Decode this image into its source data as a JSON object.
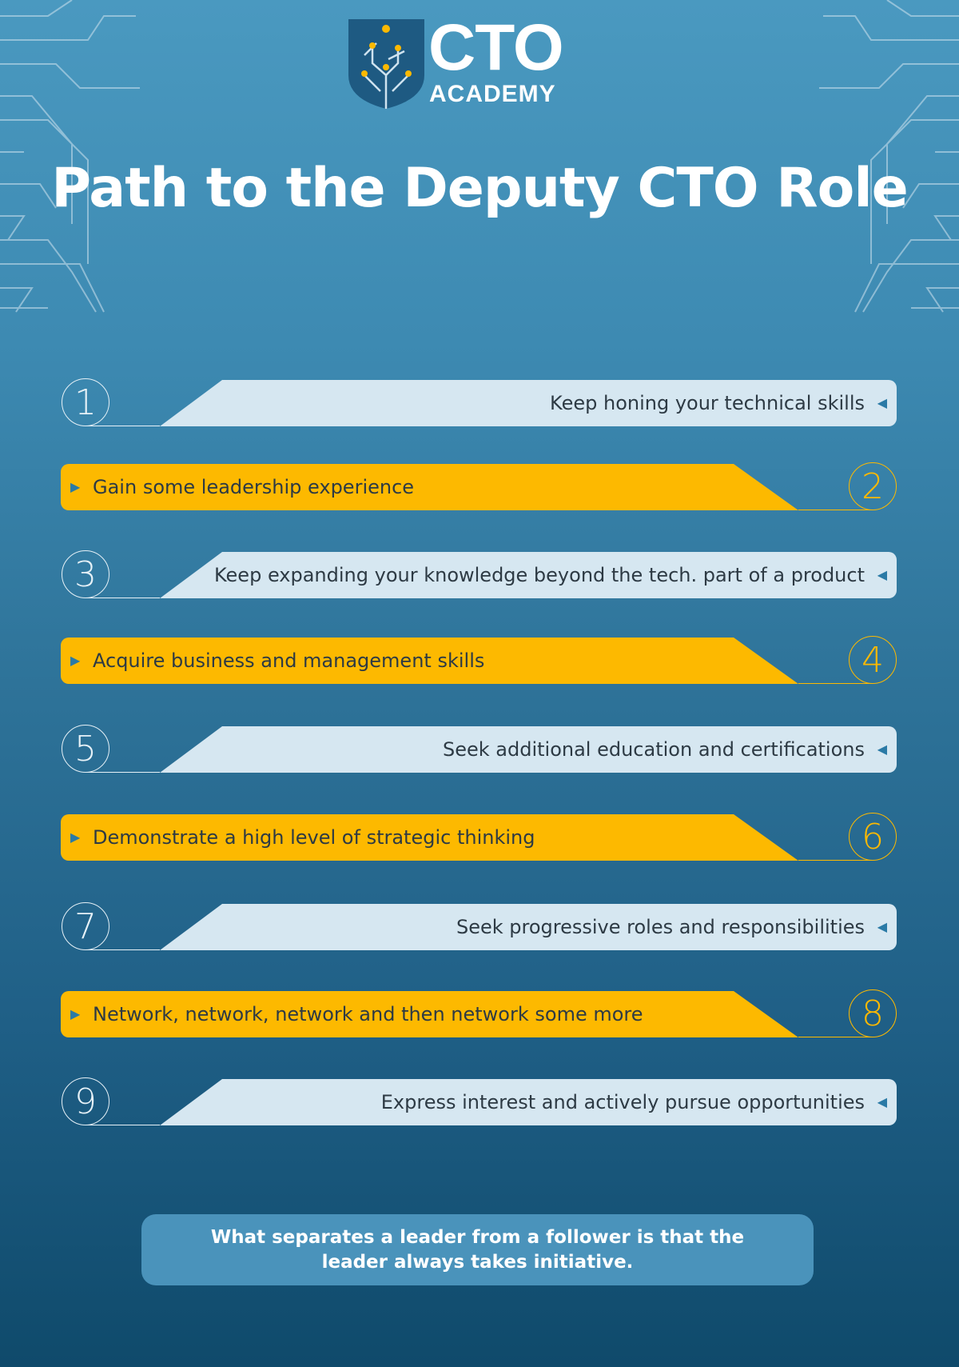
{
  "logo": {
    "line1": "CTO",
    "line2": "ACADEMY",
    "colors": {
      "shield": "#1e5a82",
      "accent": "#fdb900"
    }
  },
  "title": "Path to the Deputy CTO Role",
  "steps": [
    {
      "number": "1",
      "text": "Keep honing your technical skills",
      "style": "light"
    },
    {
      "number": "2",
      "text": "Gain some leadership experience",
      "style": "yellow"
    },
    {
      "number": "3",
      "text": "Keep expanding your knowledge beyond the tech. part of a product",
      "style": "light"
    },
    {
      "number": "4",
      "text": "Acquire business and management skills",
      "style": "yellow"
    },
    {
      "number": "5",
      "text": "Seek additional education and certifications",
      "style": "light"
    },
    {
      "number": "6",
      "text": "Demonstrate a high level of strategic thinking",
      "style": "yellow"
    },
    {
      "number": "7",
      "text": "Seek progressive roles and responsibilities",
      "style": "light"
    },
    {
      "number": "8",
      "text": "Network, network, network and then network some more",
      "style": "yellow"
    },
    {
      "number": "9",
      "text": "Express interest and actively pursue opportunities",
      "style": "light"
    }
  ],
  "quote": "What separates a leader from a follower is that the leader always takes initiative.",
  "colors": {
    "light_bar": "#d6e7f1",
    "yellow_bar": "#fdb900",
    "background_top": "#4a99c0",
    "background_bottom": "#0f4a6b",
    "quote_box": "#4a93bb"
  }
}
